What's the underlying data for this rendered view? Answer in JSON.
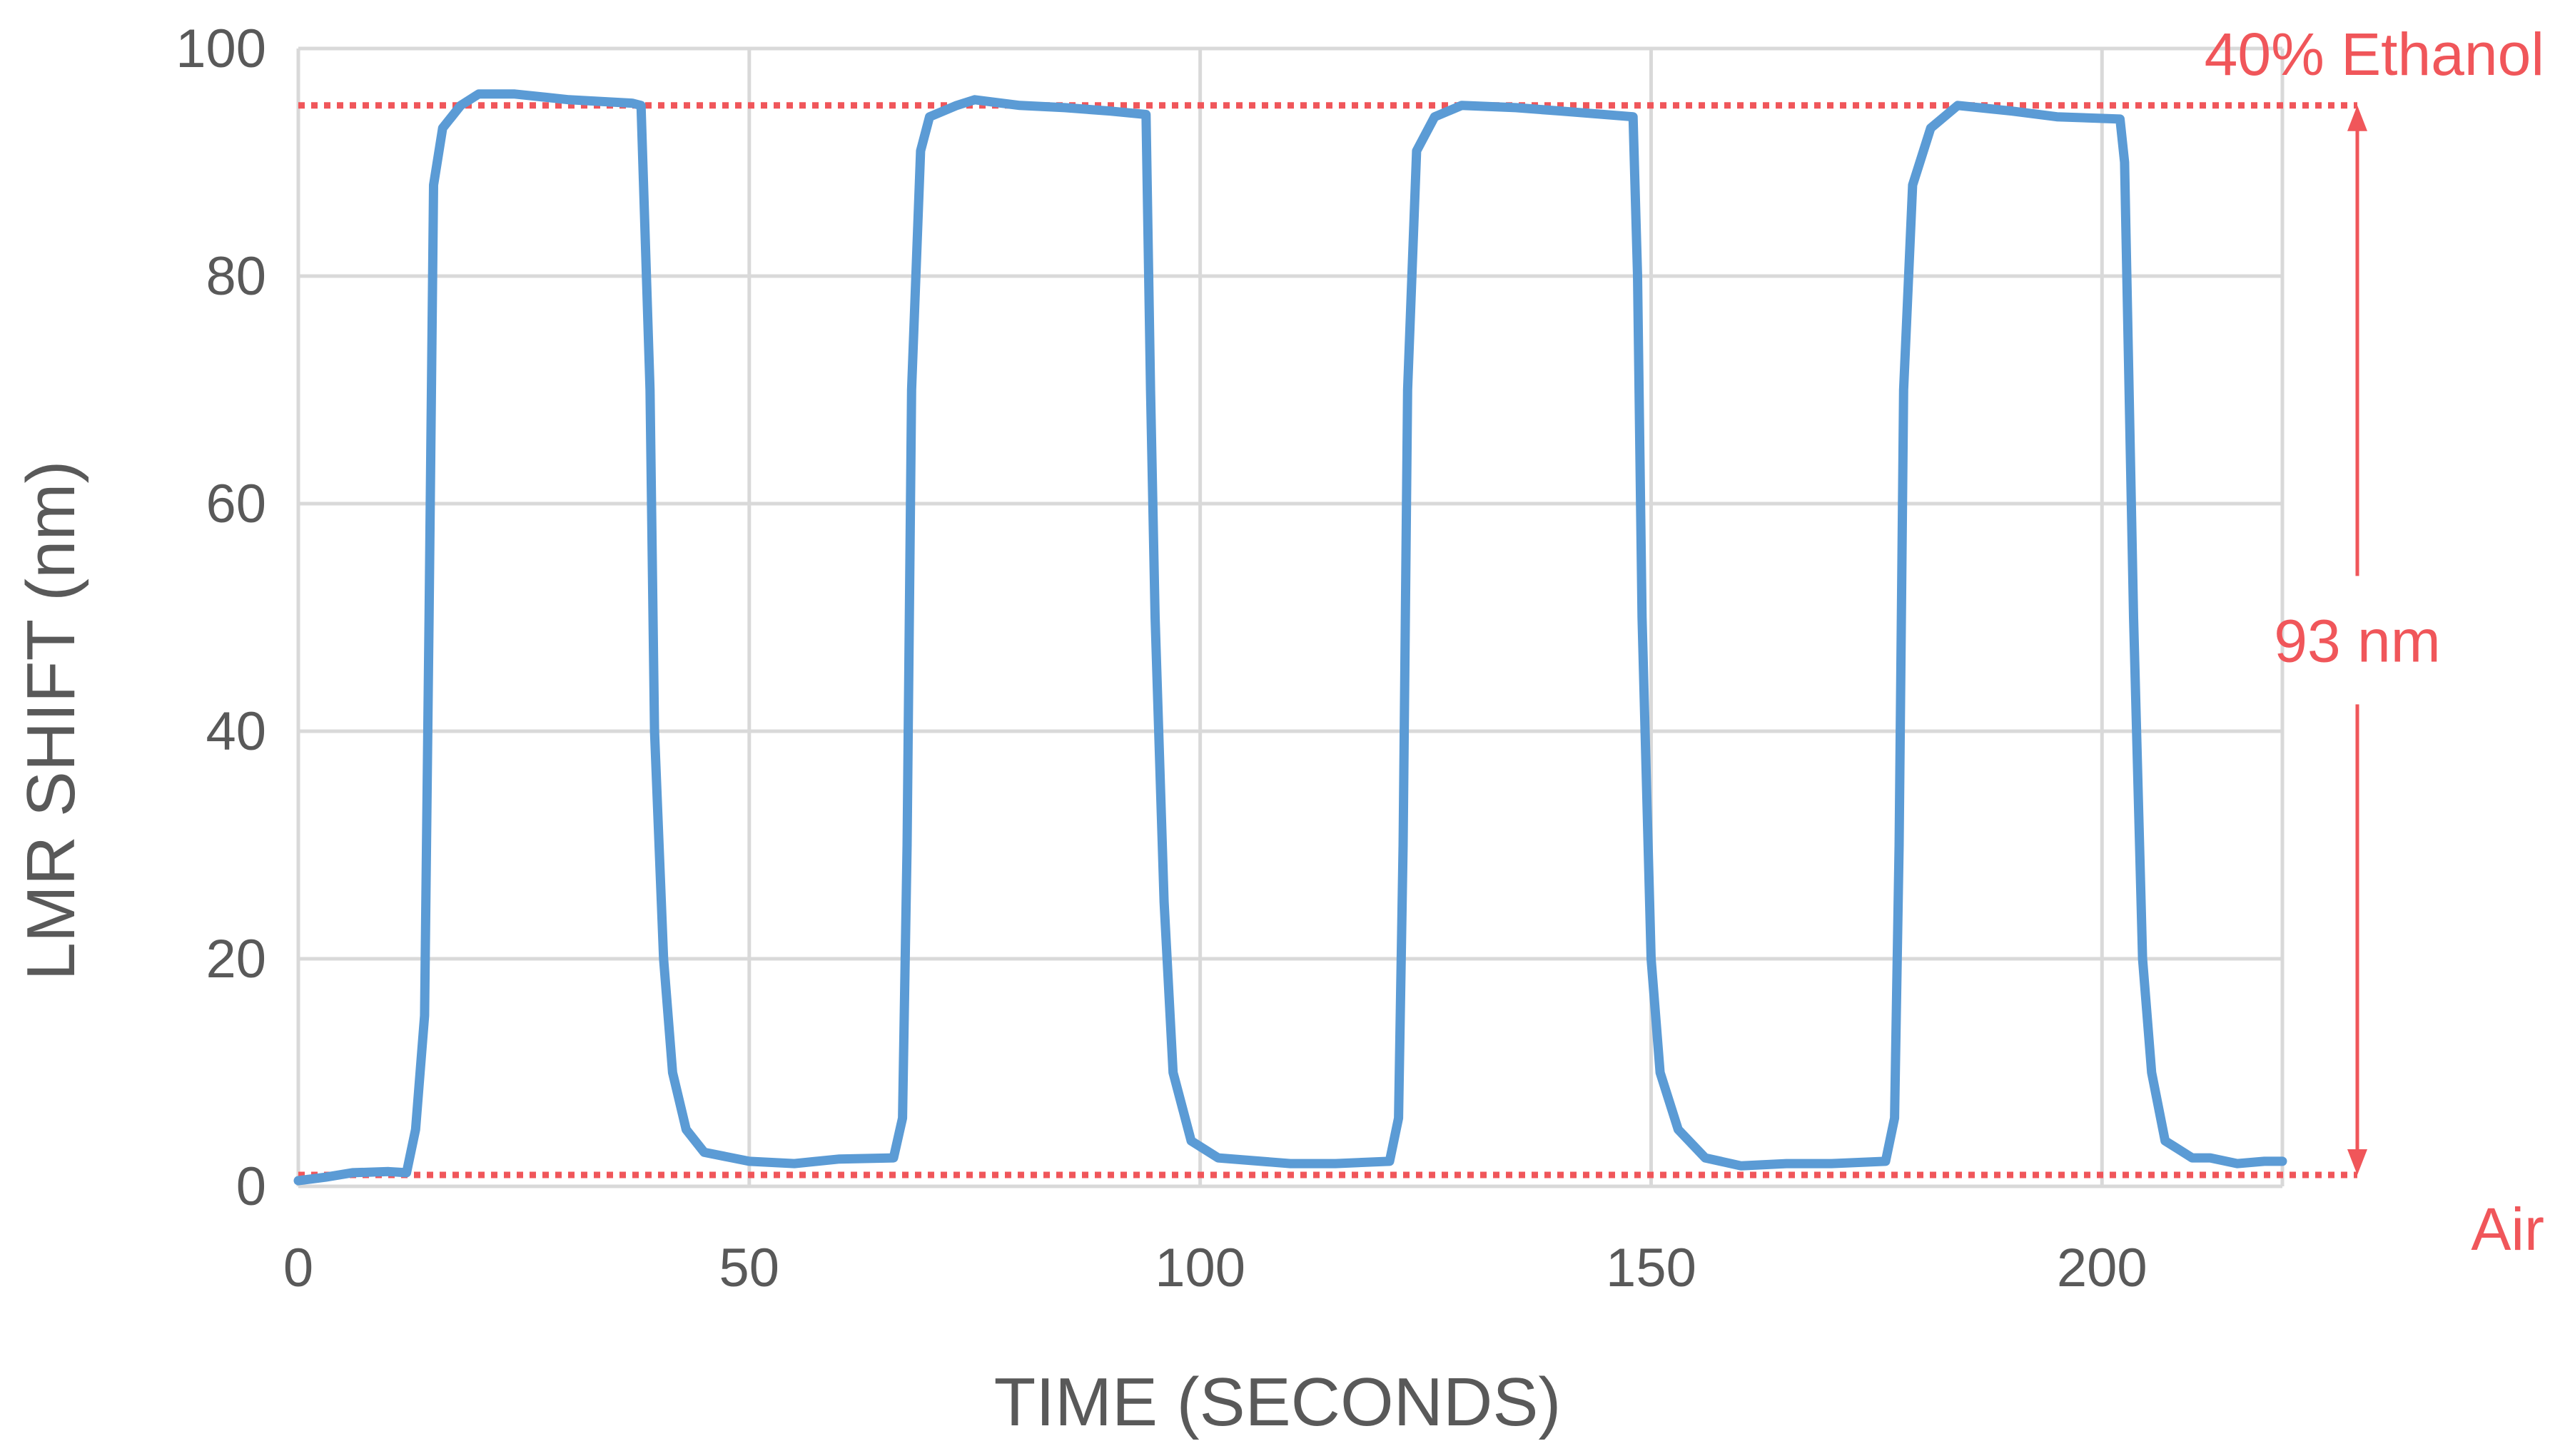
{
  "chart_data": {
    "type": "line",
    "xlabel": "TIME (SECONDS)",
    "ylabel": "LMR SHIFT  (nm)",
    "xlim": [
      0,
      220
    ],
    "ylim": [
      0,
      100
    ],
    "x_ticks": [
      0,
      50,
      100,
      150,
      200
    ],
    "y_ticks": [
      0,
      20,
      40,
      60,
      80,
      100
    ],
    "grid": true,
    "series": [
      {
        "color": "#5b9bd5",
        "points": [
          [
            0,
            0.5
          ],
          [
            3,
            0.8
          ],
          [
            6,
            1.2
          ],
          [
            10,
            1.3
          ],
          [
            12,
            1.2
          ],
          [
            13,
            5
          ],
          [
            14,
            15
          ],
          [
            14.5,
            50
          ],
          [
            15,
            88
          ],
          [
            16,
            93
          ],
          [
            18,
            95
          ],
          [
            20,
            96
          ],
          [
            24,
            96
          ],
          [
            30,
            95.5
          ],
          [
            37,
            95.2
          ],
          [
            38,
            95
          ],
          [
            39,
            70
          ],
          [
            39.5,
            40
          ],
          [
            40.5,
            20
          ],
          [
            41.5,
            10
          ],
          [
            43,
            5
          ],
          [
            45,
            3
          ],
          [
            50,
            2.2
          ],
          [
            55,
            2
          ],
          [
            60,
            2.4
          ],
          [
            66,
            2.5
          ],
          [
            67,
            6
          ],
          [
            67.5,
            30
          ],
          [
            68,
            70
          ],
          [
            69,
            91
          ],
          [
            70,
            94
          ],
          [
            73,
            95
          ],
          [
            75,
            95.5
          ],
          [
            80,
            95
          ],
          [
            85,
            94.8
          ],
          [
            90,
            94.5
          ],
          [
            94,
            94.2
          ],
          [
            94.5,
            70
          ],
          [
            95,
            50
          ],
          [
            96,
            25
          ],
          [
            97,
            10
          ],
          [
            99,
            4
          ],
          [
            102,
            2.5
          ],
          [
            110,
            2
          ],
          [
            115,
            2
          ],
          [
            121,
            2.2
          ],
          [
            122,
            6
          ],
          [
            122.5,
            30
          ],
          [
            123,
            70
          ],
          [
            124,
            91
          ],
          [
            126,
            94
          ],
          [
            129,
            95
          ],
          [
            135,
            94.8
          ],
          [
            140,
            94.5
          ],
          [
            148,
            94
          ],
          [
            148.5,
            80
          ],
          [
            149,
            50
          ],
          [
            150,
            20
          ],
          [
            151,
            10
          ],
          [
            153,
            5
          ],
          [
            156,
            2.5
          ],
          [
            160,
            1.8
          ],
          [
            165,
            2
          ],
          [
            170,
            2
          ],
          [
            176,
            2.2
          ],
          [
            177,
            6
          ],
          [
            177.5,
            30
          ],
          [
            178,
            70
          ],
          [
            179,
            88
          ],
          [
            181,
            93
          ],
          [
            184,
            95
          ],
          [
            190,
            94.5
          ],
          [
            195,
            94
          ],
          [
            202,
            93.8
          ],
          [
            202.5,
            90
          ],
          [
            203.5,
            50
          ],
          [
            204.5,
            20
          ],
          [
            205.5,
            10
          ],
          [
            207,
            4
          ],
          [
            210,
            2.5
          ],
          [
            212,
            2.5
          ],
          [
            215,
            2
          ],
          [
            218,
            2.2
          ],
          [
            220,
            2.2
          ]
        ]
      }
    ],
    "reference_lines": [
      {
        "y": 95,
        "label": "40% Ethanol",
        "color": "#f0565a",
        "style": "dotted"
      },
      {
        "y": 1,
        "label": "Air",
        "color": "#f0565a",
        "style": "dotted"
      }
    ],
    "annotations": [
      {
        "text": "93 nm",
        "type": "double-arrow",
        "from_y": 1,
        "to_y": 95,
        "color": "#f0565a"
      }
    ]
  }
}
